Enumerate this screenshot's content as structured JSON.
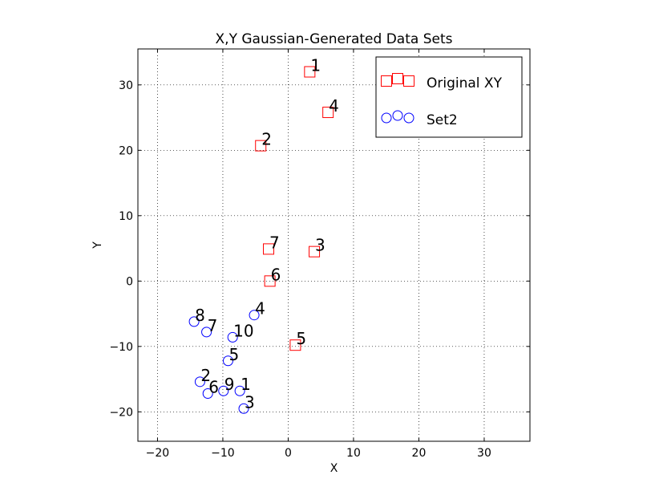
{
  "chart_data": {
    "type": "scatter",
    "title": "X,Y Gaussian-Generated Data Sets",
    "xlabel": "X",
    "ylabel": "Y",
    "xlim": [
      -23,
      37
    ],
    "ylim": [
      -24.5,
      35.5
    ],
    "xticks": [
      -20,
      -10,
      0,
      10,
      20,
      30
    ],
    "yticks": [
      -20,
      -10,
      0,
      10,
      20,
      30
    ],
    "grid": true,
    "legend_position": "top-right",
    "series": [
      {
        "name": "Original XY",
        "marker": "square",
        "color": "#ff0000",
        "points": [
          {
            "label": "1",
            "x": 3.3,
            "y": 32.0
          },
          {
            "label": "2",
            "x": -4.2,
            "y": 20.7
          },
          {
            "label": "3",
            "x": 4.0,
            "y": 4.5
          },
          {
            "label": "4",
            "x": 6.1,
            "y": 25.8
          },
          {
            "label": "5",
            "x": 1.1,
            "y": -9.8
          },
          {
            "label": "6",
            "x": -2.8,
            "y": 0.0
          },
          {
            "label": "7",
            "x": -3.0,
            "y": 4.9
          }
        ]
      },
      {
        "name": "Set2",
        "marker": "circle",
        "color": "#0000ff",
        "points": [
          {
            "label": "1",
            "x": -7.4,
            "y": -16.8
          },
          {
            "label": "2",
            "x": -13.5,
            "y": -15.4
          },
          {
            "label": "3",
            "x": -6.8,
            "y": -19.5
          },
          {
            "label": "4",
            "x": -5.2,
            "y": -5.2
          },
          {
            "label": "5",
            "x": -9.2,
            "y": -12.2
          },
          {
            "label": "6",
            "x": -12.3,
            "y": -17.2
          },
          {
            "label": "7",
            "x": -12.5,
            "y": -7.8
          },
          {
            "label": "8",
            "x": -14.4,
            "y": -6.2
          },
          {
            "label": "9",
            "x": -9.9,
            "y": -16.8
          },
          {
            "label": "10",
            "x": -8.5,
            "y": -8.6
          }
        ]
      }
    ]
  }
}
